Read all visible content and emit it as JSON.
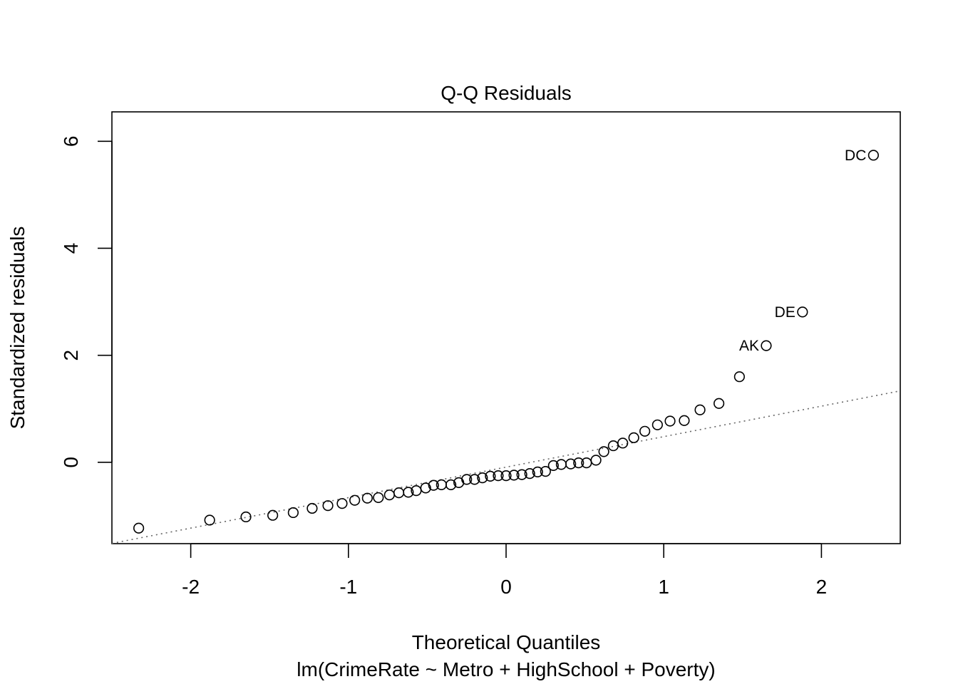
{
  "chart_data": {
    "type": "scatter",
    "title": "Q-Q Residuals",
    "xlabel": "Theoretical Quantiles",
    "subtitle": "lm(CrimeRate ~ Metro + HighSchool + Poverty)",
    "ylabel": "Standardized residuals",
    "xlim": [
      -2.5,
      2.5
    ],
    "ylim": [
      -1.52,
      6.55
    ],
    "xticks": [
      -2,
      -1,
      0,
      1,
      2
    ],
    "xtick_labels": [
      "-2",
      "-1",
      "0",
      "1",
      "2"
    ],
    "yticks": [
      0,
      2,
      4,
      6
    ],
    "ytick_labels": [
      "0",
      "2",
      "4",
      "6"
    ],
    "grid": false,
    "points": [
      {
        "x": -2.33,
        "y": -1.23
      },
      {
        "x": -1.88,
        "y": -1.08
      },
      {
        "x": -1.65,
        "y": -1.02
      },
      {
        "x": -1.48,
        "y": -0.99
      },
      {
        "x": -1.35,
        "y": -0.94
      },
      {
        "x": -1.23,
        "y": -0.86
      },
      {
        "x": -1.13,
        "y": -0.81
      },
      {
        "x": -1.04,
        "y": -0.77
      },
      {
        "x": -0.96,
        "y": -0.71
      },
      {
        "x": -0.88,
        "y": -0.67
      },
      {
        "x": -0.81,
        "y": -0.66
      },
      {
        "x": -0.74,
        "y": -0.61
      },
      {
        "x": -0.68,
        "y": -0.57
      },
      {
        "x": -0.62,
        "y": -0.56
      },
      {
        "x": -0.57,
        "y": -0.53
      },
      {
        "x": -0.51,
        "y": -0.48
      },
      {
        "x": -0.46,
        "y": -0.43
      },
      {
        "x": -0.41,
        "y": -0.42
      },
      {
        "x": -0.35,
        "y": -0.42
      },
      {
        "x": -0.3,
        "y": -0.38
      },
      {
        "x": -0.25,
        "y": -0.32
      },
      {
        "x": -0.2,
        "y": -0.32
      },
      {
        "x": -0.15,
        "y": -0.29
      },
      {
        "x": -0.1,
        "y": -0.26
      },
      {
        "x": -0.05,
        "y": -0.25
      },
      {
        "x": 0.0,
        "y": -0.25
      },
      {
        "x": 0.05,
        "y": -0.24
      },
      {
        "x": 0.1,
        "y": -0.23
      },
      {
        "x": 0.15,
        "y": -0.21
      },
      {
        "x": 0.2,
        "y": -0.18
      },
      {
        "x": 0.25,
        "y": -0.17
      },
      {
        "x": 0.3,
        "y": -0.06
      },
      {
        "x": 0.35,
        "y": -0.04
      },
      {
        "x": 0.41,
        "y": -0.03
      },
      {
        "x": 0.46,
        "y": -0.01
      },
      {
        "x": 0.51,
        "y": -0.01
      },
      {
        "x": 0.57,
        "y": 0.04
      },
      {
        "x": 0.62,
        "y": 0.2
      },
      {
        "x": 0.68,
        "y": 0.31
      },
      {
        "x": 0.74,
        "y": 0.36
      },
      {
        "x": 0.81,
        "y": 0.46
      },
      {
        "x": 0.88,
        "y": 0.58
      },
      {
        "x": 0.96,
        "y": 0.7
      },
      {
        "x": 1.04,
        "y": 0.77
      },
      {
        "x": 1.13,
        "y": 0.78
      },
      {
        "x": 1.23,
        "y": 0.98
      },
      {
        "x": 1.35,
        "y": 1.1
      },
      {
        "x": 1.48,
        "y": 1.6
      },
      {
        "x": 1.65,
        "y": 2.18,
        "label": "AK"
      },
      {
        "x": 1.88,
        "y": 2.81,
        "label": "DE"
      },
      {
        "x": 2.33,
        "y": 5.74,
        "label": "DC"
      }
    ],
    "reference_line": {
      "intercept": -0.09,
      "slope": 0.57,
      "style": "dotted",
      "color": "#666666"
    }
  }
}
